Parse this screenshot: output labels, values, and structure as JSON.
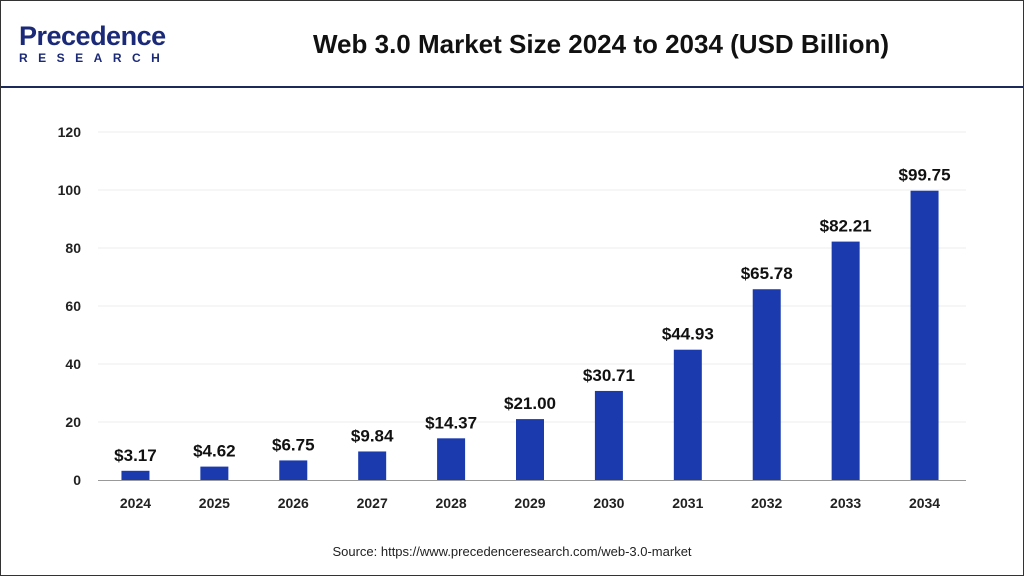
{
  "logo": {
    "line1": "Precedence",
    "line2": "RESEARCH"
  },
  "header": {
    "title": "Web 3.0 Market Size 2024 to 2034 (USD Billion)"
  },
  "source": "Source: https://www.precedenceresearch.com/web-3.0-market",
  "colors": {
    "bar": "#1a3aae",
    "header_line": "#1b2a5a"
  },
  "chart_data": {
    "type": "bar",
    "title": "Web 3.0 Market Size 2024 to 2034 (USD Billion)",
    "categories": [
      "2024",
      "2025",
      "2026",
      "2027",
      "2028",
      "2029",
      "2030",
      "2031",
      "2032",
      "2033",
      "2034"
    ],
    "values": [
      3.17,
      4.62,
      6.75,
      9.84,
      14.37,
      21.0,
      30.71,
      44.93,
      65.78,
      82.21,
      99.75
    ],
    "data_labels": [
      "$3.17",
      "$4.62",
      "$6.75",
      "$9.84",
      "$14.37",
      "$21.00",
      "$30.71",
      "$44.93",
      "$65.78",
      "$82.21",
      "$99.75"
    ],
    "yticks": [
      "0",
      "20",
      "40",
      "60",
      "80",
      "100",
      "120"
    ],
    "ylim": [
      0,
      120
    ],
    "xlabel": "",
    "ylabel": "",
    "grid": true,
    "legend": "none"
  }
}
